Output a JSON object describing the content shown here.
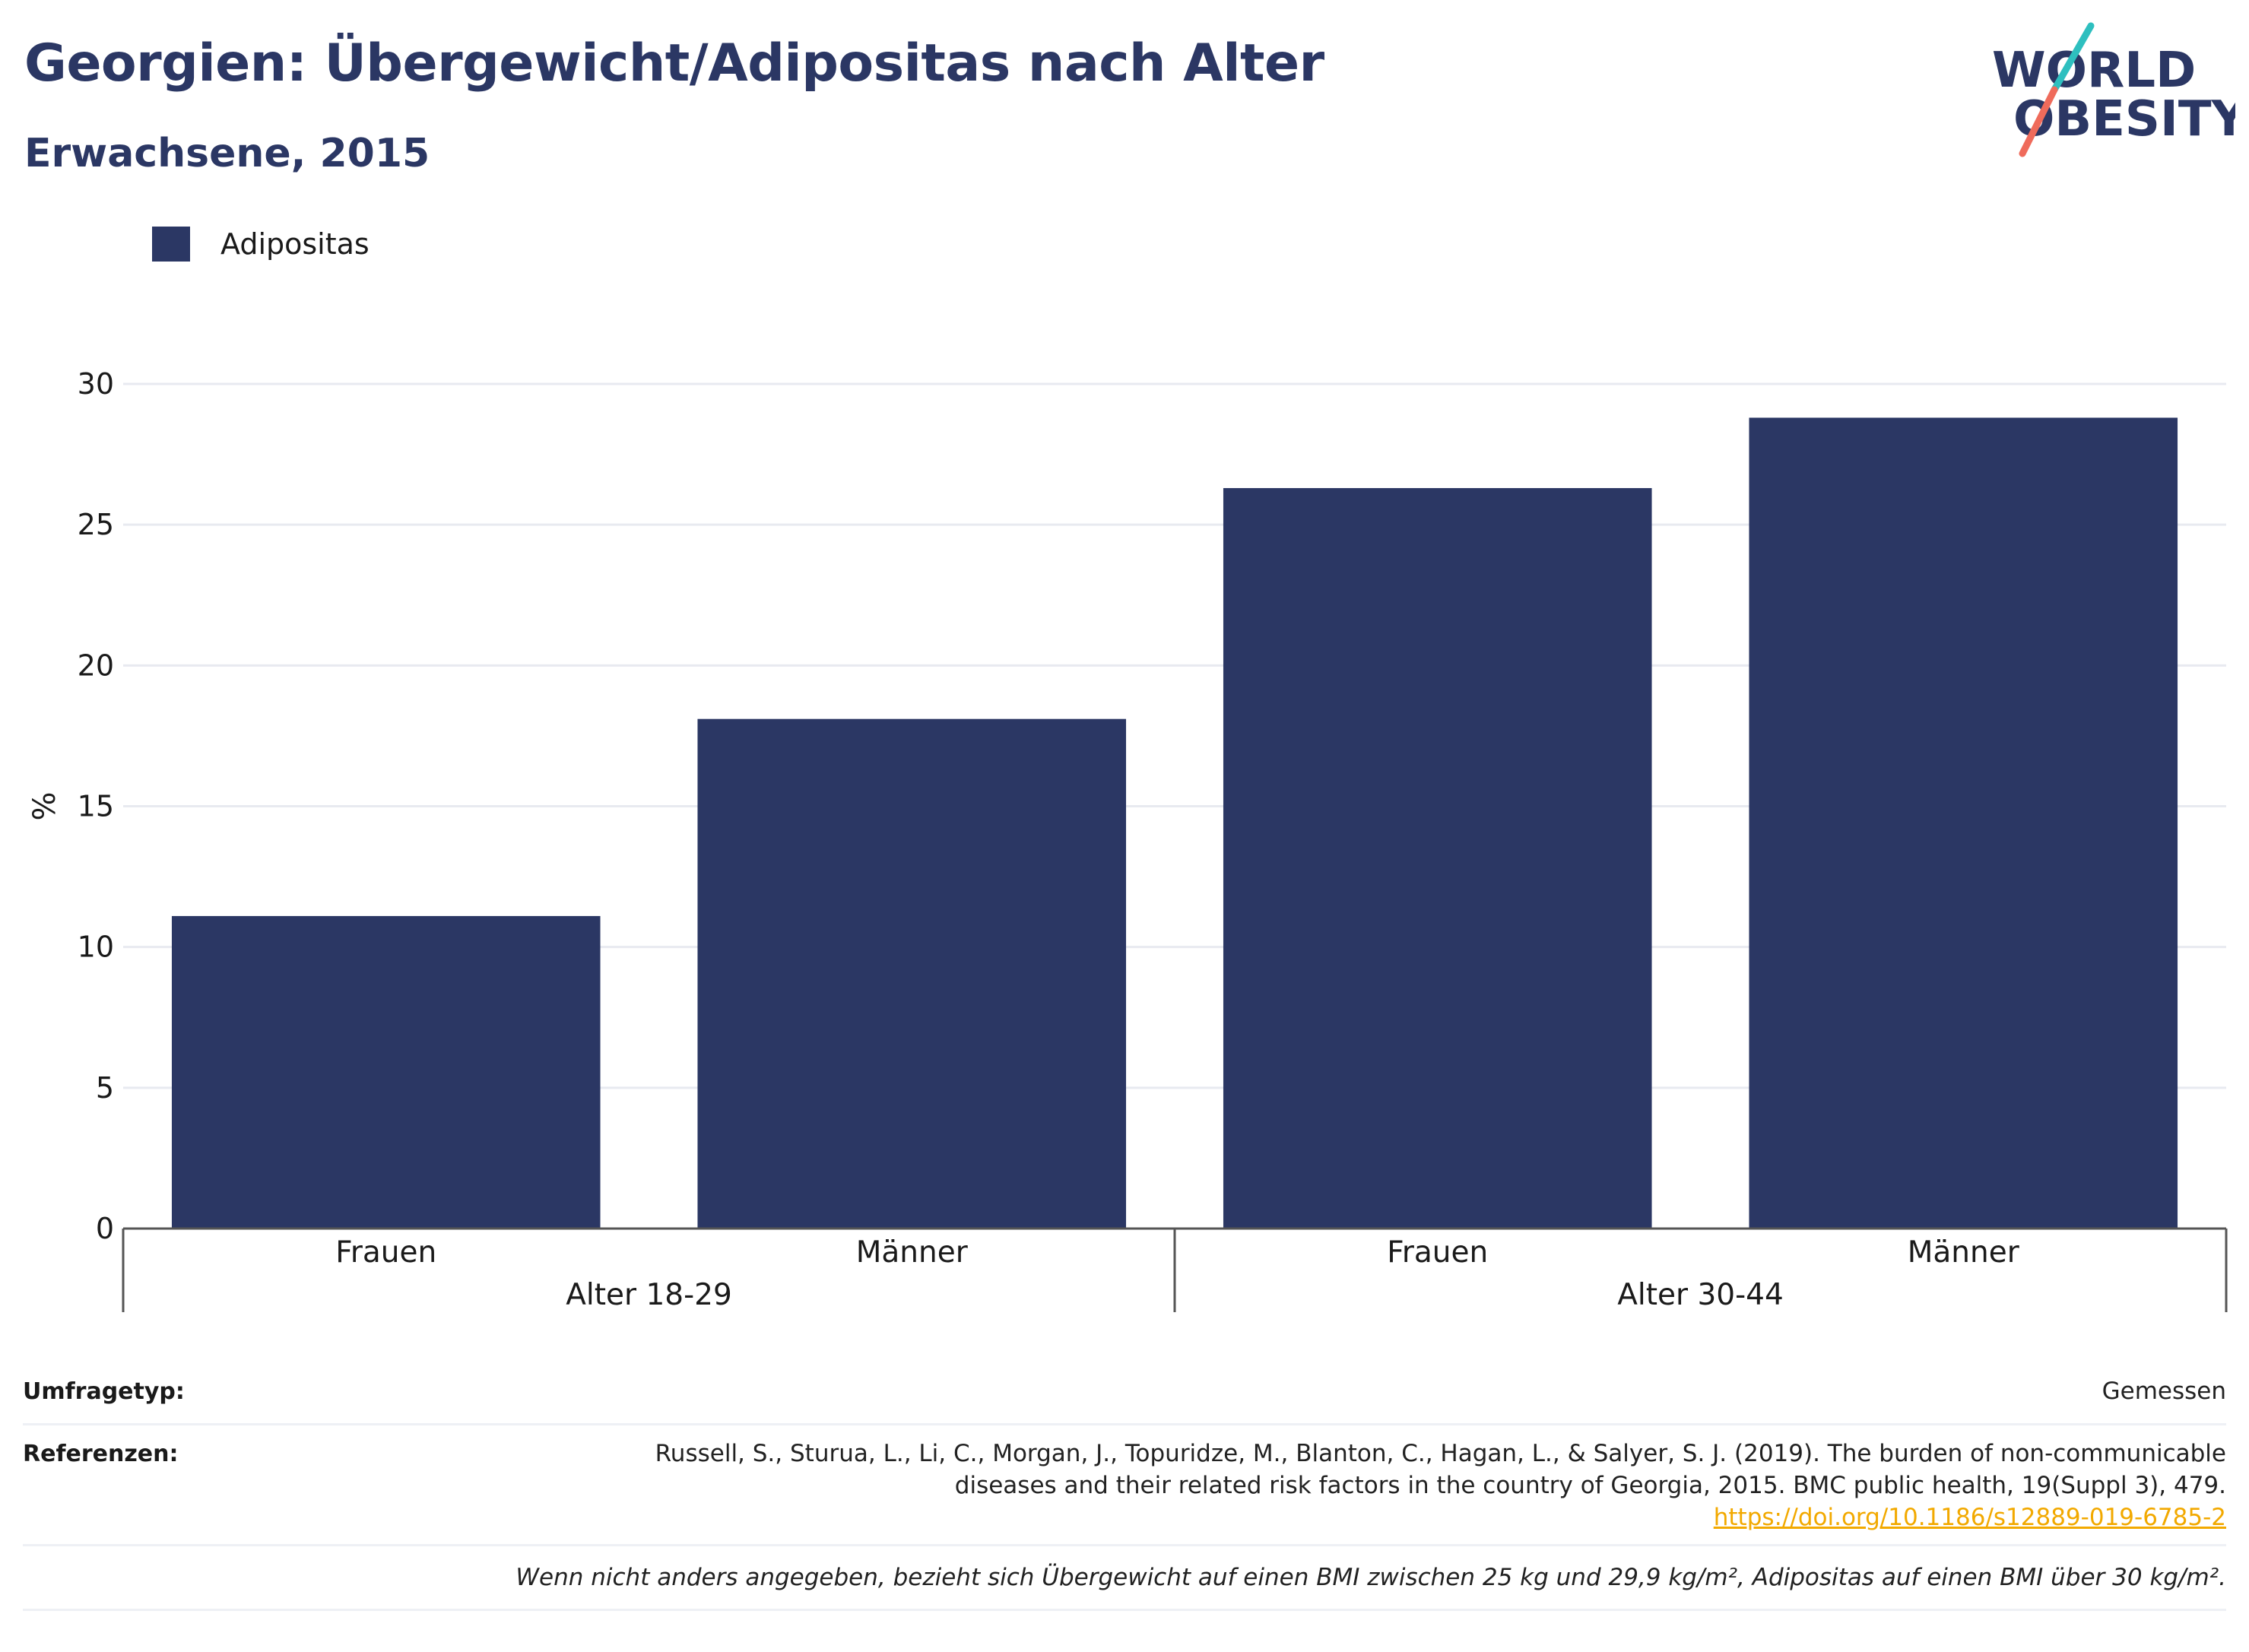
{
  "header": {
    "title": "Georgien: Übergewicht/Adipositas nach Alter",
    "subtitle": "Erwachsene, 2015"
  },
  "logo": {
    "line1": "WORLD",
    "line2": "OBESITY"
  },
  "chart_data": {
    "type": "bar",
    "legend": {
      "label": "Adipositas",
      "placement": "top-left"
    },
    "ylabel": "%",
    "ylim": [
      0,
      30
    ],
    "yticks": [
      0,
      5,
      10,
      15,
      20,
      25,
      30
    ],
    "grid": true,
    "groups": [
      {
        "label": "Alter 18-29",
        "categories": [
          "Frauen",
          "Männer"
        ],
        "values": [
          11.1,
          18.1
        ]
      },
      {
        "label": "Alter 30-44",
        "categories": [
          "Frauen",
          "Männer"
        ],
        "values": [
          26.3,
          28.8
        ]
      }
    ],
    "series": [
      {
        "name": "Adipositas",
        "values": [
          11.1,
          18.1,
          26.3,
          28.8
        ]
      }
    ]
  },
  "footer": {
    "survey_label": "Umfragetyp:",
    "survey_value": "Gemessen",
    "references_label": "Referenzen:",
    "reference_line1": "Russell, S., Sturua, L., Li, C., Morgan, J., Topuridze, M., Blanton, C., Hagan, L., & Salyer, S. J. (2019). The burden of non-communicable",
    "reference_line2": "diseases and their related risk factors in the country of Georgia, 2015. BMC public health, 19(Suppl 3), 479.",
    "reference_link": "https://doi.org/10.1186/s12889-019-6785-2",
    "note": "Wenn nicht anders angegeben, bezieht sich Übergewicht auf einen BMI zwischen 25 kg und 29,9 kg/m², Adipositas auf einen BMI über 30 kg/m²."
  },
  "colors": {
    "bar": "#2b3764",
    "title": "#2b3764",
    "logo_teal": "#2ebfbf",
    "logo_coral": "#ef6b5b",
    "grid": "#e8eaf0",
    "link": "#f2a900"
  }
}
